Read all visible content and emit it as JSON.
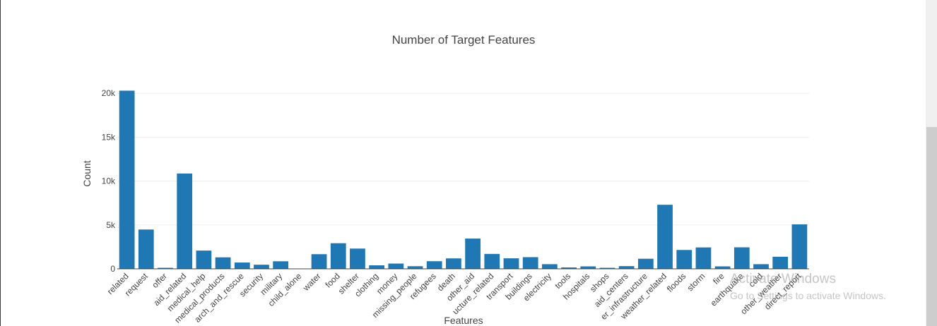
{
  "chart_data": {
    "type": "bar",
    "title": "Number of Target Features",
    "xlabel": "Features",
    "ylabel": "Count",
    "ylim": [
      0,
      20500
    ],
    "yticks": [
      0,
      5000,
      10000,
      15000,
      20000
    ],
    "ytick_labels": [
      "0",
      "5k",
      "10k",
      "15k",
      "20k"
    ],
    "grid": true,
    "bar_color": "#1f77b4",
    "categories": [
      "related",
      "request",
      "offer",
      "aid_related",
      "medical_help",
      "medical_products",
      "search_and_rescue",
      "security",
      "military",
      "child_alone",
      "water",
      "food",
      "shelter",
      "clothing",
      "money",
      "missing_people",
      "refugees",
      "death",
      "other_aid",
      "infrastructure_related",
      "transport",
      "buildings",
      "electricity",
      "tools",
      "hospitals",
      "shops",
      "aid_centers",
      "other_infrastructure",
      "weather_related",
      "floods",
      "storm",
      "fire",
      "earthquake",
      "cold",
      "other_weather",
      "direct_report"
    ],
    "tick_labels": [
      "related",
      "request",
      "offer",
      "aid_related",
      "medical_help",
      "medical_products",
      "arch_and_rescue",
      "security",
      "military",
      "child_alone",
      "water",
      "food",
      "shelter",
      "clothing",
      "money",
      "missing_people",
      "refugees",
      "death",
      "other_aid",
      "ucture_related",
      "transport",
      "buildings",
      "electricity",
      "tools",
      "hospitals",
      "shops",
      "aid_centers",
      "er_infrastructure",
      "weather_related",
      "floods",
      "storm",
      "fire",
      "earthquake",
      "cold",
      "other_weather",
      "direct_report"
    ],
    "values": [
      20300,
      4480,
      120,
      10860,
      2080,
      1310,
      720,
      470,
      860,
      0,
      1670,
      2920,
      2310,
      400,
      600,
      300,
      870,
      1190,
      3450,
      1700,
      1200,
      1330,
      530,
      160,
      280,
      120,
      310,
      1150,
      7300,
      2150,
      2440,
      280,
      2450,
      530,
      1380,
      5070
    ]
  },
  "watermark": {
    "title": "Activate Windows",
    "subtitle": "Go to Settings to activate Windows."
  }
}
